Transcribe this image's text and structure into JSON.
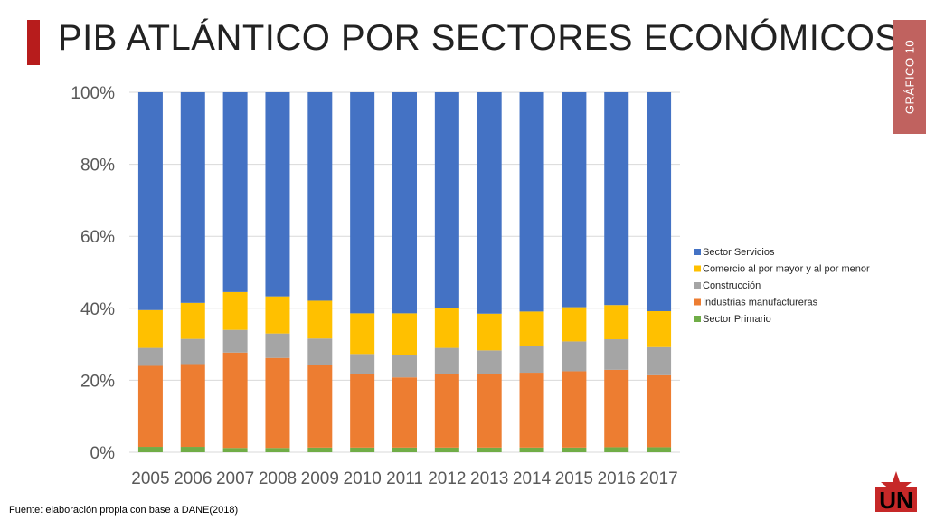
{
  "page": {
    "title": "PIB ATLÁNTICO POR SECTORES ECONÓMICOS",
    "side_label": "GRÁFICO 10",
    "source": "Fuente: elaboración propia con base a DANE(2018)",
    "logo_text": "UN"
  },
  "colors": {
    "accent": "#b71c1c",
    "side_tab": "#c0625f"
  },
  "chart_data": {
    "type": "bar",
    "stacked": true,
    "percent": true,
    "categories": [
      "2005",
      "2006",
      "2007",
      "2008",
      "2009",
      "2010",
      "2011",
      "2012",
      "2013",
      "2014",
      "2015",
      "2016",
      "2017"
    ],
    "ylim": [
      0,
      100
    ],
    "yticks": [
      "0%",
      "20%",
      "40%",
      "60%",
      "80%",
      "100%"
    ],
    "grid": true,
    "legend_position": "right",
    "series": [
      {
        "name": "Sector Primario",
        "color": "#70ad47",
        "values": [
          1.5,
          1.5,
          1.2,
          1.2,
          1.3,
          1.3,
          1.3,
          1.3,
          1.3,
          1.3,
          1.3,
          1.4,
          1.4
        ]
      },
      {
        "name": "Industrias manufactureras",
        "color": "#ed7d31",
        "values": [
          22.5,
          23,
          26.5,
          25,
          23,
          20.5,
          19.5,
          20.5,
          20.5,
          20.8,
          21.2,
          21.5,
          20
        ]
      },
      {
        "name": "Construcción",
        "color": "#a5a5a5",
        "values": [
          5,
          7,
          6.3,
          6.8,
          7.3,
          5.5,
          6.3,
          7.2,
          6.5,
          7.5,
          8.3,
          8.5,
          7.8
        ]
      },
      {
        "name": "Comercio al por mayor y al por menor",
        "color": "#ffc000",
        "values": [
          10.5,
          10,
          10.5,
          10.3,
          10.5,
          11.3,
          11.5,
          11,
          10.2,
          9.5,
          9.5,
          9.5,
          10
        ]
      },
      {
        "name": "Sector Servicios",
        "color": "#4472c4",
        "values": [
          60.5,
          58.5,
          55.5,
          56.7,
          57.9,
          61.4,
          61.4,
          60,
          61.5,
          60.9,
          59.7,
          59.1,
          60.8
        ]
      }
    ],
    "legend_order": [
      "Sector Servicios",
      "Comercio al por mayor y al por menor",
      "Construcción",
      "Industrias manufactureras",
      "Sector Primario"
    ]
  }
}
